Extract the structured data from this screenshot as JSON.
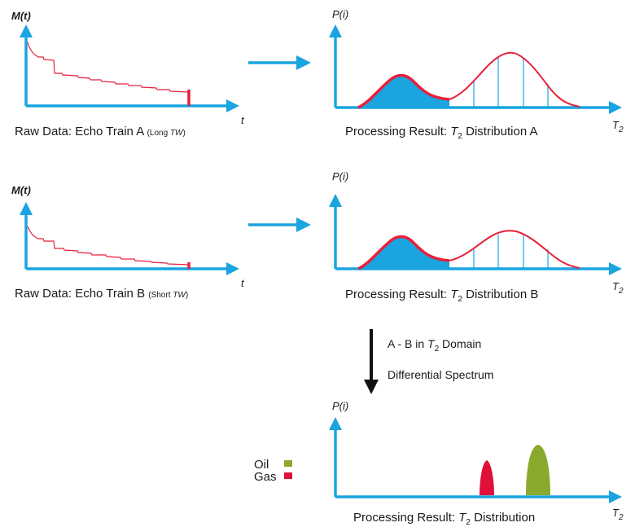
{
  "rows": [
    {
      "raw": {
        "y_label": "M(t)",
        "x_label": "t",
        "caption_main": "Raw Data: Echo Train A ",
        "caption_paren_open": "(Long ",
        "caption_paren_italic": "TW",
        "caption_paren_close": ")"
      },
      "result": {
        "y_label": "P(i)",
        "x_label_base": "T",
        "x_label_sub": "2",
        "caption_prefix": "Processing Result: ",
        "caption_T": "T",
        "caption_sub": "2",
        "caption_suffix": " Distribution A"
      }
    },
    {
      "raw": {
        "y_label": "M(t)",
        "x_label": "t",
        "caption_main": "Raw Data: Echo Train B ",
        "caption_paren_open": "(Short ",
        "caption_paren_italic": "TW",
        "caption_paren_close": ")"
      },
      "result": {
        "y_label": "P(i)",
        "x_label_base": "T",
        "x_label_sub": "2",
        "caption_prefix": "Processing Result: ",
        "caption_T": "T",
        "caption_sub": "2",
        "caption_suffix": " Distribution B"
      }
    }
  ],
  "subtraction": {
    "line1_prefix": "A -  B in ",
    "line1_T": "T",
    "line1_sub": "2",
    "line1_suffix": " Domain",
    "line2": "Differential Spectrum"
  },
  "differential": {
    "y_label": "P(i)",
    "x_label_base": "T",
    "x_label_sub": "2",
    "caption_prefix": "Processing Result: ",
    "caption_T": "T",
    "caption_sub": "2",
    "caption_suffix": " Distribution"
  },
  "legend": [
    {
      "label": "Oil",
      "color": "#8aaa2e"
    },
    {
      "label": "Gas",
      "color": "#e0103a"
    }
  ],
  "colors": {
    "axis": "#1aa4e0",
    "curve": "#e8203a",
    "oil": "#8aaa2e",
    "gas": "#e0103a",
    "arrow": "#111111"
  }
}
